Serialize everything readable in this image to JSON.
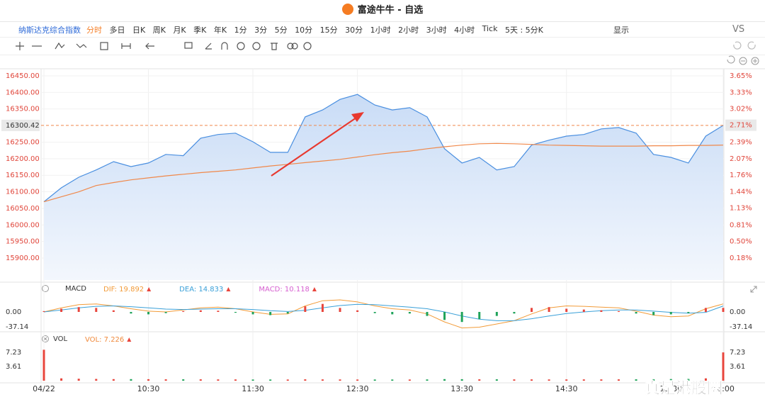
{
  "window": {
    "title": "富途牛牛 - 自选"
  },
  "toolbar": {
    "symbol": "纳斯达克综合指数",
    "periods": [
      "分时",
      "多日",
      "日K",
      "周K",
      "月K",
      "季K",
      "年K",
      "1分",
      "3分",
      "5分",
      "10分",
      "15分",
      "30分",
      "1小时",
      "2小时",
      "3小时",
      "4小时",
      "Tick"
    ],
    "active": "分时",
    "multi_day": "5天 : 5分K",
    "display": "显示",
    "compare": "VS"
  },
  "chart_data": [
    {
      "type": "line",
      "area": true,
      "grid": true,
      "x": [
        "09:30",
        "09:40",
        "09:50",
        "10:00",
        "10:10",
        "10:20",
        "10:30",
        "10:40",
        "10:50",
        "11:00",
        "11:10",
        "11:20",
        "11:30",
        "11:40",
        "11:50",
        "12:00",
        "12:10",
        "12:20",
        "12:30",
        "12:40",
        "12:50",
        "13:00",
        "13:10",
        "13:20",
        "13:30",
        "13:40",
        "13:50",
        "14:00",
        "14:10",
        "14:20",
        "14:30",
        "14:40",
        "14:50",
        "15:00",
        "15:10",
        "15:20",
        "15:30",
        "15:40",
        "15:50",
        "16:00"
      ],
      "xlim": [
        "09:30",
        "16:00"
      ],
      "xticks": [
        {
          "value": "09:30",
          "label": "04/22"
        },
        "10:30",
        "11:30",
        "12:30",
        "13:30",
        "14:30",
        "15:30",
        "16:00"
      ],
      "series": [
        {
          "color": "#4a8fe0",
          "values": [
            16070,
            16112,
            16144,
            16166,
            16191,
            16176,
            16187,
            16213,
            16209,
            16262,
            16273,
            16277,
            16251,
            16219,
            16219,
            16326,
            16347,
            16379,
            16394,
            16362,
            16347,
            16354,
            16326,
            16230,
            16187,
            16204,
            16166,
            16176,
            16241,
            16256,
            16268,
            16273,
            16290,
            16294,
            16277,
            16213,
            16204,
            16187,
            16268,
            16300.42
          ]
        },
        {
          "color": "#f0884a",
          "values": [
            16070,
            16085,
            16100,
            16119,
            16128,
            16136,
            16142,
            16148,
            16153,
            16158,
            16162,
            16166,
            16172,
            16178,
            16183,
            16188,
            16193,
            16198,
            16205,
            16212,
            16218,
            16223,
            16230,
            16236,
            16241,
            16245,
            16246,
            16245,
            16243,
            16241,
            16240,
            16239,
            16238,
            16238,
            16238,
            16239,
            16239,
            16240,
            16240,
            16241
          ]
        }
      ],
      "ylim": [
        15833.7,
        16471.4
      ],
      "yticks": [
        {
          "value": 16450,
          "label": "16450.00"
        },
        {
          "value": 16400,
          "label": "16400.00"
        },
        {
          "value": 16350,
          "label": "16350.00"
        },
        {
          "value": 16250,
          "label": "16250.00"
        },
        {
          "value": 16200,
          "label": "16200.00"
        },
        {
          "value": 16150,
          "label": "16150.00"
        },
        {
          "value": 16100,
          "label": "16100.00"
        },
        {
          "value": 16050,
          "label": "16050.00"
        },
        {
          "value": 16000,
          "label": "16000.00"
        },
        {
          "value": 15950,
          "label": "15950.00"
        },
        {
          "value": 15900,
          "label": "15900.00"
        }
      ],
      "y2lim": [
        -0.239,
        3.785
      ],
      "y2ticks": [
        {
          "value": 3.65,
          "label": "3.65%"
        },
        {
          "value": 3.33,
          "label": "3.33%"
        },
        {
          "value": 3.02,
          "label": "3.02%"
        },
        {
          "value": 2.39,
          "label": "2.39%"
        },
        {
          "value": 2.07,
          "label": "2.07%"
        },
        {
          "value": 1.76,
          "label": "1.76%"
        },
        {
          "value": 1.44,
          "label": "1.44%"
        },
        {
          "value": 1.13,
          "label": "1.13%"
        },
        {
          "value": 0.81,
          "label": "0.81%"
        },
        {
          "value": 0.5,
          "label": "0.50%"
        },
        {
          "value": 0.18,
          "label": "0.18%"
        }
      ],
      "last_price": 16300.42,
      "last_change": {
        "value": 2.71,
        "label": "2.71%"
      }
    },
    {
      "type": "macd",
      "title": "MACD",
      "up_color": "#e8453c",
      "down_color": "#1fa35a",
      "series": [
        {
          "label": "DIF: 19.892",
          "color": "#f29b38",
          "values": [
            0,
            10,
            18,
            20,
            15,
            8,
            2,
            0,
            5,
            10,
            12,
            8,
            0,
            -6,
            -5,
            15,
            28,
            30,
            25,
            15,
            8,
            5,
            -5,
            -25,
            -40,
            -38,
            -30,
            -22,
            -5,
            10,
            15,
            14,
            12,
            10,
            2,
            -8,
            -12,
            -10,
            8,
            19.892
          ]
        },
        {
          "label": "DEA: 14.833",
          "color": "#3aa0d8",
          "values": [
            0,
            5,
            10,
            14,
            15,
            13,
            10,
            7,
            6,
            7,
            8,
            8,
            6,
            3,
            1,
            4,
            10,
            16,
            19,
            18,
            15,
            12,
            8,
            0,
            -10,
            -18,
            -22,
            -22,
            -17,
            -10,
            -4,
            0,
            3,
            5,
            5,
            2,
            -1,
            -3,
            -1,
            14.833
          ]
        },
        {
          "label": "MACD: 10.118",
          "color": "#d65fd0",
          "values": [
            2,
            8,
            12,
            10,
            4,
            -4,
            -6,
            -3,
            2,
            4,
            3,
            -2,
            -6,
            -8,
            -4,
            14,
            20,
            10,
            4,
            -3,
            -6,
            -4,
            -10,
            -20,
            -25,
            -18,
            -10,
            -4,
            10,
            12,
            8,
            6,
            4,
            2,
            -4,
            -8,
            -6,
            -3,
            10,
            10.118
          ]
        }
      ],
      "ylim": [
        -44.2,
        44.2
      ],
      "yticks": [
        {
          "value": 0,
          "label": "0.00"
        },
        -37.14
      ]
    },
    {
      "type": "bar",
      "title": "VOL",
      "legend": "VOL: 7.226",
      "color": "#f08a3c",
      "up_color": "#e8453c",
      "down_color": "#1fa35a",
      "values": [
        7.9,
        0.6,
        0.5,
        0.45,
        0.4,
        0.4,
        0.38,
        0.35,
        0.35,
        0.35,
        0.33,
        0.32,
        0.3,
        0.3,
        0.3,
        0.35,
        0.33,
        0.32,
        0.3,
        0.3,
        0.3,
        0.3,
        0.32,
        0.4,
        0.38,
        0.35,
        0.35,
        0.33,
        0.33,
        0.32,
        0.32,
        0.33,
        0.33,
        0.34,
        0.35,
        0.38,
        0.42,
        0.45,
        0.6,
        7.226
      ],
      "ylim": [
        0,
        9.05
      ],
      "yticks": [
        7.23,
        3.61
      ]
    }
  ],
  "watermark": "真是港股圈"
}
